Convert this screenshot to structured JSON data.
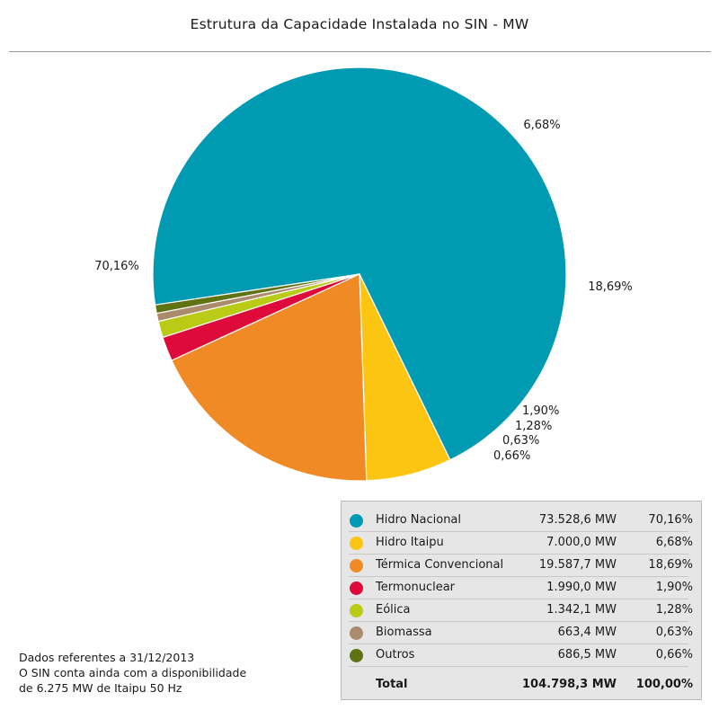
{
  "chart_data": {
    "type": "pie",
    "title": "Estrutura da Capacidade Instalada no SIN - MW",
    "slices": [
      {
        "name": "Hidro Nacional",
        "value": 73528.6,
        "value_label": "73.528,6 MW",
        "percent": 70.16,
        "percent_label": "70,16%",
        "color": "#009ab3"
      },
      {
        "name": "Hidro Itaipu",
        "value": 7000.0,
        "value_label": "7.000,0 MW",
        "percent": 6.68,
        "percent_label": "6,68%",
        "color": "#fcc511"
      },
      {
        "name": "Térmica Convencional",
        "value": 19587.7,
        "value_label": "19.587,7 MW",
        "percent": 18.69,
        "percent_label": "18,69%",
        "color": "#f08a25"
      },
      {
        "name": "Termonuclear",
        "value": 1990.0,
        "value_label": "1.990,0 MW",
        "percent": 1.9,
        "percent_label": "1,90%",
        "color": "#de0a3a"
      },
      {
        "name": "Eólica",
        "value": 1342.1,
        "value_label": "1.342,1 MW",
        "percent": 1.28,
        "percent_label": "1,28%",
        "color": "#b9cb14"
      },
      {
        "name": "Biomassa",
        "value": 663.4,
        "value_label": "663,4 MW",
        "percent": 0.63,
        "percent_label": "0,63%",
        "color": "#aa8c6c"
      },
      {
        "name": "Outros",
        "value": 686.5,
        "value_label": "686,5 MW",
        "percent": 0.66,
        "percent_label": "0,66%",
        "color": "#5f7313"
      }
    ],
    "total": {
      "label": "Total",
      "value": 104798.3,
      "value_label": "104.798,3 MW",
      "percent_label": "100,00%"
    }
  },
  "notes": [
    "Dados referentes a 31/12/2013",
    "O SIN conta ainda com a disponibilidade",
    "de 6.275 MW de Itaipu 50 Hz"
  ]
}
